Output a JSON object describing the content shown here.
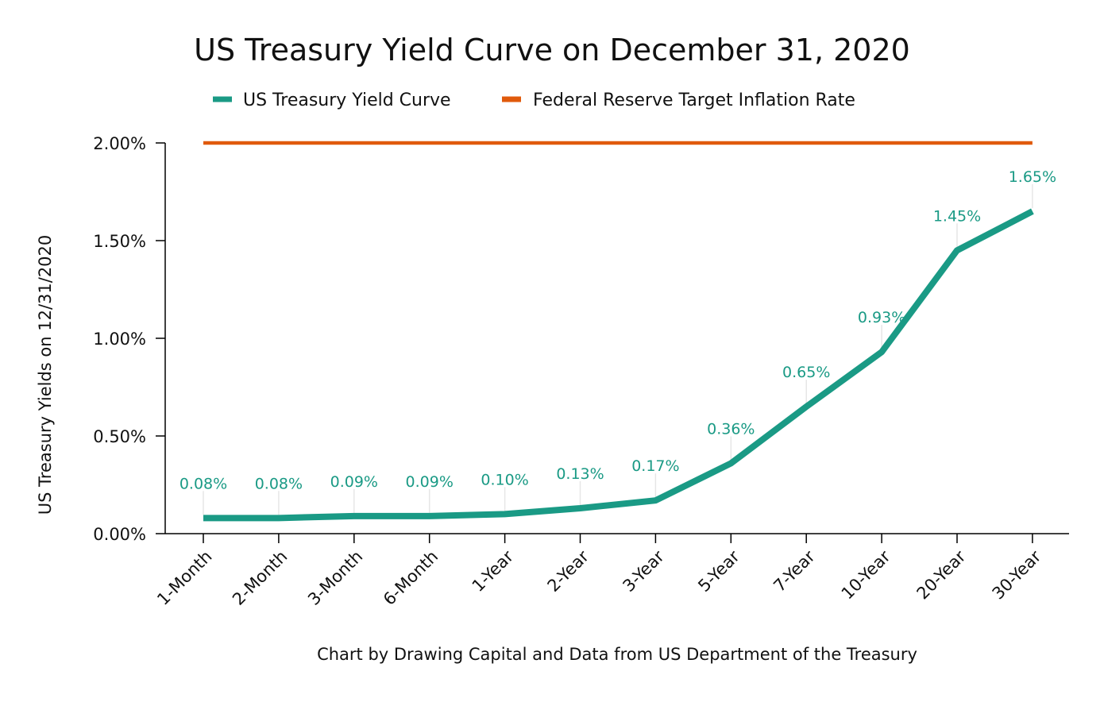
{
  "chart_data": {
    "type": "line",
    "title": "US Treasury Yield Curve on December 31, 2020",
    "xlabel": "Chart by Drawing Capital and Data from US Department of the Treasury",
    "ylabel": "US Treasury Yields on 12/31/2020",
    "categories": [
      "1-Month",
      "2-Month",
      "3-Month",
      "6-Month",
      "1-Year",
      "2-Year",
      "3-Year",
      "5-Year",
      "7-Year",
      "10-Year",
      "20-Year",
      "30-Year"
    ],
    "ylim": [
      0,
      2.0
    ],
    "y_ticks": [
      {
        "value": 0.0,
        "label": "0.00%"
      },
      {
        "value": 0.5,
        "label": "0.50%"
      },
      {
        "value": 1.0,
        "label": "1.00%"
      },
      {
        "value": 1.5,
        "label": "1.50%"
      },
      {
        "value": 2.0,
        "label": "2.00%"
      }
    ],
    "grid": false,
    "legend_position": "top-center",
    "series": [
      {
        "name": "US Treasury Yield Curve",
        "color": "#1a9a85",
        "values": [
          0.08,
          0.08,
          0.09,
          0.09,
          0.1,
          0.13,
          0.17,
          0.36,
          0.65,
          0.93,
          1.45,
          1.65
        ],
        "data_labels": [
          "0.08%",
          "0.08%",
          "0.09%",
          "0.09%",
          "0.10%",
          "0.13%",
          "0.17%",
          "0.36%",
          "0.65%",
          "0.93%",
          "1.45%",
          "1.65%"
        ]
      },
      {
        "name": "Federal Reserve Target Inflation Rate",
        "color": "#e05a0c",
        "values": [
          2.0,
          2.0,
          2.0,
          2.0,
          2.0,
          2.0,
          2.0,
          2.0,
          2.0,
          2.0,
          2.0,
          2.0
        ]
      }
    ]
  }
}
